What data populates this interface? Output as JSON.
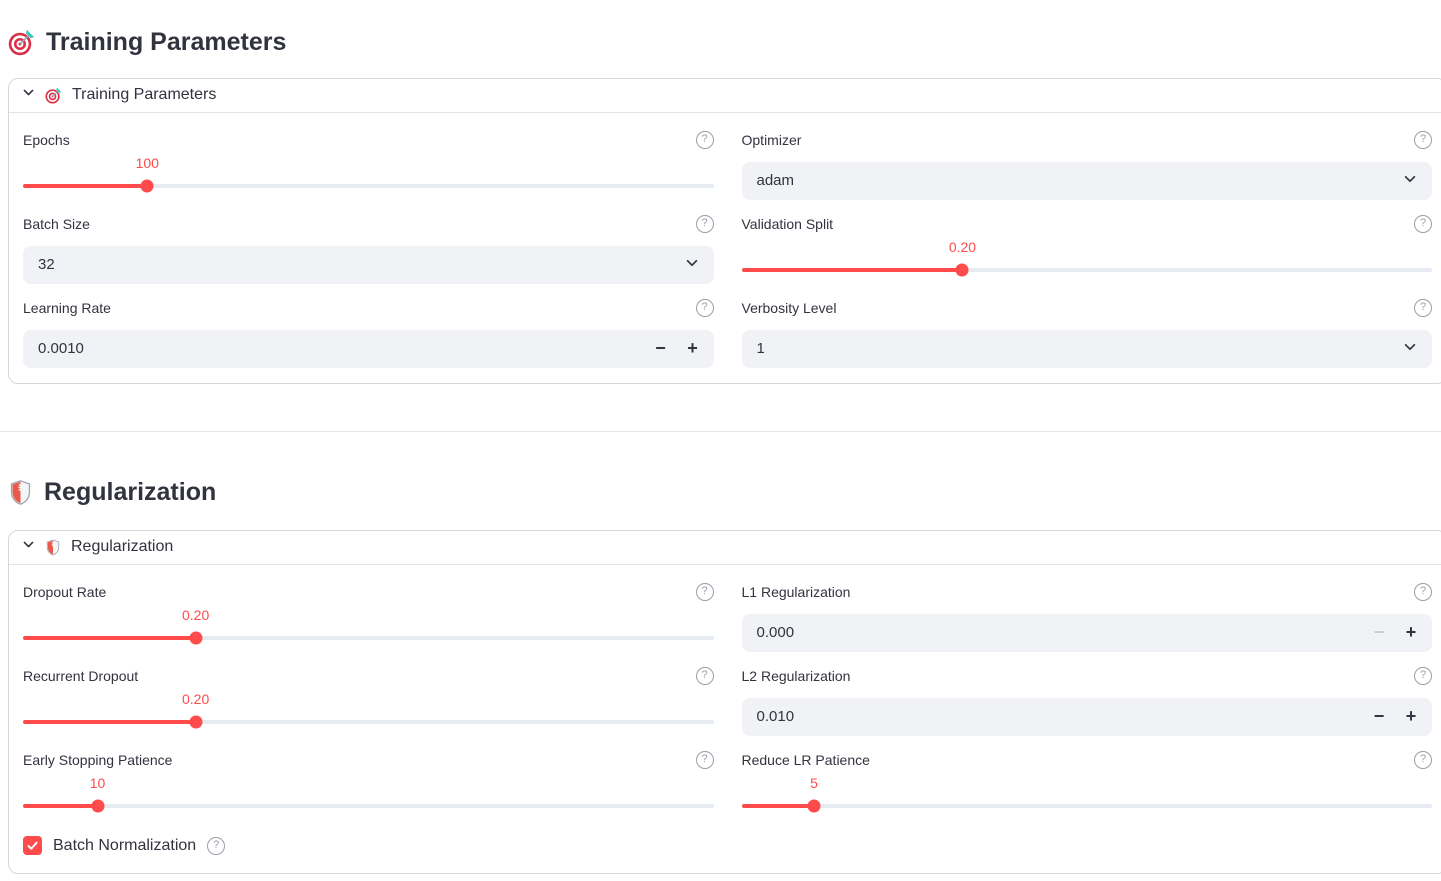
{
  "theme": {
    "primary": "#ff4b4b",
    "text": "#31333F",
    "input_bg": "#f0f2f6",
    "track_bg": "#e6eaf1"
  },
  "ui": {
    "help_glyph": "?",
    "minus_glyph": "−",
    "plus_glyph": "+"
  },
  "training": {
    "header_title": "Training Parameters",
    "header_icon": "dart-target",
    "expander_label": "Training Parameters",
    "controls": {
      "epochs": {
        "label": "Epochs",
        "value": "100",
        "fill_pct": 18
      },
      "optimizer": {
        "label": "Optimizer",
        "value": "adam"
      },
      "batch_size": {
        "label": "Batch Size",
        "value": "32"
      },
      "validation_split": {
        "label": "Validation Split",
        "value": "0.20",
        "fill_pct": 32
      },
      "learning_rate": {
        "label": "Learning Rate",
        "value": "0.0010",
        "minus_disabled": false
      },
      "verbosity": {
        "label": "Verbosity Level",
        "value": "1"
      }
    }
  },
  "regularization": {
    "header_title": "Regularization",
    "header_icon": "shield",
    "expander_label": "Regularization",
    "controls": {
      "dropout": {
        "label": "Dropout Rate",
        "value": "0.20",
        "fill_pct": 25
      },
      "l1": {
        "label": "L1 Regularization",
        "value": "0.000",
        "minus_disabled": true
      },
      "recurrent_dropout": {
        "label": "Recurrent Dropout",
        "value": "0.20",
        "fill_pct": 25
      },
      "l2": {
        "label": "L2 Regularization",
        "value": "0.010",
        "minus_disabled": false
      },
      "early_stopping": {
        "label": "Early Stopping Patience",
        "value": "10",
        "fill_pct": 10.8
      },
      "reduce_lr": {
        "label": "Reduce LR Patience",
        "value": "5",
        "fill_pct": 10.5
      },
      "batch_norm": {
        "label": "Batch Normalization",
        "checked": true
      }
    }
  }
}
